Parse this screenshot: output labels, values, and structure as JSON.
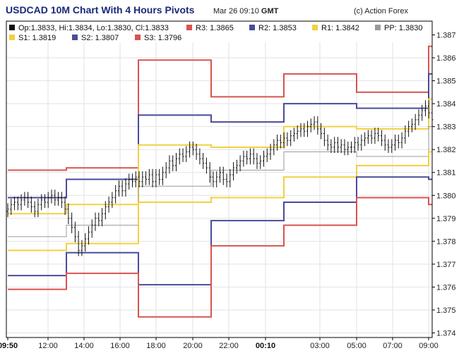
{
  "header": {
    "title": "USDCAD 10M Chart With 4 Hours Pivots",
    "date_prefix": "Mar 26 09:10",
    "date_suffix": "GMT",
    "copyright": "(c) Action Forex"
  },
  "legend": {
    "ohlc": "Op:1.3833, Hi:1.3834, Lo:1.3830, Cl:1.3833",
    "items": [
      {
        "key": "R3",
        "label": "R3: 1.3865",
        "color": "#d9534f"
      },
      {
        "key": "R2",
        "label": "R2: 1.3853",
        "color": "#4a4a9a"
      },
      {
        "key": "R1",
        "label": "R1: 1.3842",
        "color": "#f2d040"
      },
      {
        "key": "PP",
        "label": "PP: 1.3830",
        "color": "#9a9a9a"
      },
      {
        "key": "S1",
        "label": "S1: 1.3819",
        "color": "#f2d040"
      },
      {
        "key": "S2",
        "label": "S2: 1.3807",
        "color": "#4a4a9a"
      },
      {
        "key": "S3",
        "label": "S3: 1.3796",
        "color": "#d9534f"
      }
    ]
  },
  "chart_data": {
    "type": "line",
    "title": "USDCAD 10M Chart With 4 Hours Pivots",
    "ylim": [
      1.3738,
      1.3876
    ],
    "grid": true,
    "y_ticks": [
      "1.374",
      "1.375",
      "1.376",
      "1.377",
      "1.378",
      "1.379",
      "1.380",
      "1.381",
      "1.382",
      "1.383",
      "1.384",
      "1.385",
      "1.386",
      "1.387"
    ],
    "x_ticks": [
      {
        "label": "09:50",
        "bold": true
      },
      {
        "label": "12:00",
        "bold": false
      },
      {
        "label": "14:00",
        "bold": false
      },
      {
        "label": "16:00",
        "bold": false
      },
      {
        "label": "18:00",
        "bold": false
      },
      {
        "label": "20:00",
        "bold": false
      },
      {
        "label": "22:00",
        "bold": false
      },
      {
        "label": "00:10",
        "bold": true
      },
      {
        "label": "03:00",
        "bold": false
      },
      {
        "label": "05:00",
        "bold": false
      },
      {
        "label": "07:00",
        "bold": false
      },
      {
        "label": "09:00",
        "bold": false
      }
    ],
    "pivot_series": [
      {
        "name": "R3",
        "color": "#d9534f",
        "values": [
          1.3811,
          1.3812,
          1.3859,
          1.3843,
          1.3853,
          1.3845,
          1.3865
        ]
      },
      {
        "name": "R2",
        "color": "#4a4a9a",
        "values": [
          1.3799,
          1.3807,
          1.3835,
          1.3832,
          1.384,
          1.3838,
          1.3853
        ]
      },
      {
        "name": "R1",
        "color": "#f2d040",
        "values": [
          1.3792,
          1.3796,
          1.3822,
          1.3821,
          1.383,
          1.3829,
          1.3842
        ]
      },
      {
        "name": "PP",
        "color": "#9a9a9a",
        "values": [
          1.3782,
          1.3787,
          1.3804,
          1.3811,
          1.3819,
          1.3817,
          1.383
        ]
      },
      {
        "name": "S1",
        "color": "#f2d040",
        "values": [
          1.3776,
          1.3779,
          1.3797,
          1.3799,
          1.3808,
          1.3813,
          1.3819
        ]
      },
      {
        "name": "S2",
        "color": "#4a4a9a",
        "values": [
          1.3765,
          1.3775,
          1.3761,
          1.3789,
          1.3797,
          1.3808,
          1.3807
        ]
      },
      {
        "name": "S3",
        "color": "#d9534f",
        "values": [
          1.3759,
          1.3766,
          1.3747,
          1.3778,
          1.3787,
          1.3799,
          1.3796
        ]
      }
    ],
    "price_series": {
      "name": "USDCAD",
      "closes": [
        1.3794,
        1.3796,
        1.3797,
        1.3796,
        1.3798,
        1.3799,
        1.3797,
        1.3795,
        1.3793,
        1.3796,
        1.3798,
        1.3797,
        1.3799,
        1.38,
        1.3798,
        1.3799,
        1.3797,
        1.3794,
        1.379,
        1.3786,
        1.3782,
        1.3776,
        1.3778,
        1.3781,
        1.3784,
        1.3787,
        1.379,
        1.3789,
        1.3792,
        1.3795,
        1.3797,
        1.3799,
        1.3802,
        1.3804,
        1.3802,
        1.3805,
        1.3807,
        1.3806,
        1.3808,
        1.3806,
        1.3808,
        1.3807,
        1.3809,
        1.3806,
        1.3809,
        1.3807,
        1.381,
        1.3812,
        1.3815,
        1.3813,
        1.3816,
        1.3818,
        1.3817,
        1.3819,
        1.3821,
        1.382,
        1.3818,
        1.3816,
        1.3814,
        1.3812,
        1.3808,
        1.3806,
        1.3808,
        1.381,
        1.3807,
        1.3806,
        1.3809,
        1.3812,
        1.3813,
        1.3815,
        1.3817,
        1.3816,
        1.3818,
        1.3816,
        1.3814,
        1.3815,
        1.3817,
        1.3818,
        1.382,
        1.3822,
        1.3824,
        1.3823,
        1.3825,
        1.3824,
        1.3826,
        1.3827,
        1.3828,
        1.3829,
        1.3828,
        1.383,
        1.3831,
        1.3832,
        1.3829,
        1.3827,
        1.3824,
        1.3822,
        1.3821,
        1.3823,
        1.3821,
        1.3822,
        1.382,
        1.3821,
        1.3821,
        1.3823,
        1.3822,
        1.3824,
        1.3825,
        1.3826,
        1.3825,
        1.3827,
        1.3826,
        1.3824,
        1.3822,
        1.3821,
        1.3822,
        1.3824,
        1.3823,
        1.3825,
        1.3828,
        1.383,
        1.3831,
        1.3833,
        1.3835,
        1.3837,
        1.3839,
        1.3836,
        1.3833
      ]
    }
  }
}
